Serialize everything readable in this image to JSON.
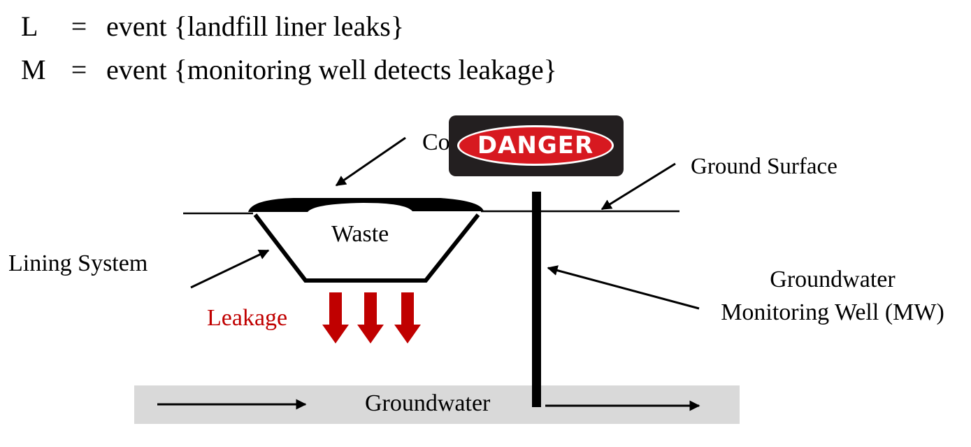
{
  "definitions": [
    {
      "symbol": "L",
      "equals": "=",
      "text": "event {landfill liner leaks}"
    },
    {
      "symbol": "M",
      "equals": "=",
      "text": "event {monitoring well detects leakage}"
    }
  ],
  "labels": {
    "cover": "Cover",
    "ground_surface": "Ground Surface",
    "waste": "Waste",
    "lining_system": "Lining System",
    "leakage": "Leakage",
    "monitoring_well_line1": "Groundwater",
    "monitoring_well_line2": "Monitoring Well (MW)",
    "groundwater": "Groundwater"
  },
  "sign": {
    "text": "DANGER"
  },
  "colors": {
    "leakage": "#c00000",
    "groundwater_band": "#d9d9d9",
    "sign_background": "#231f20",
    "sign_oval": "#d71920"
  }
}
